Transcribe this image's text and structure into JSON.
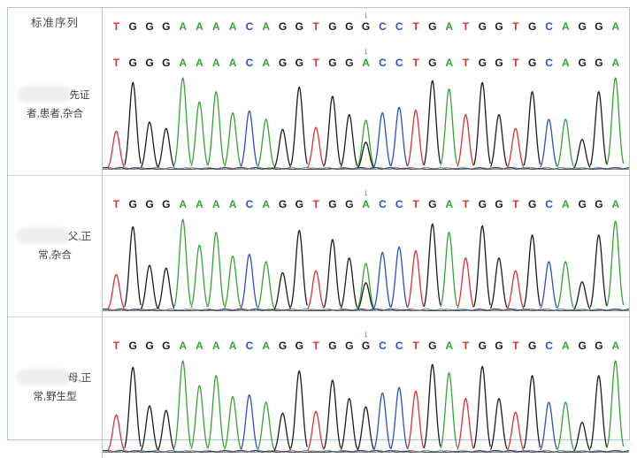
{
  "table": {
    "header": {
      "label": "标准序列",
      "sequence": "TGGGAAAACAGGTGGGCCTGATGGTGCAGGA",
      "arrow_index": 15
    },
    "rows": [
      {
        "label": "先证者,患者,杂合",
        "name_redacted": true,
        "sequence": "TGGGAAAACAGGTGGACCTGATGGTGCAGGA",
        "arrow_index": 15,
        "peaks": [
          {
            "b": "T",
            "h": 0.42
          },
          {
            "b": "G",
            "h": 0.95
          },
          {
            "b": "G",
            "h": 0.52
          },
          {
            "b": "G",
            "h": 0.45
          },
          {
            "b": "A",
            "h": 1.0
          },
          {
            "b": "A",
            "h": 0.74
          },
          {
            "b": "A",
            "h": 0.85
          },
          {
            "b": "A",
            "h": 0.62
          },
          {
            "b": "C",
            "h": 0.64
          },
          {
            "b": "A",
            "h": 0.55
          },
          {
            "b": "G",
            "h": 0.44
          },
          {
            "b": "G",
            "h": 0.9
          },
          {
            "b": "T",
            "h": 0.46
          },
          {
            "b": "G",
            "h": 0.8
          },
          {
            "b": "G",
            "h": 0.6
          },
          {
            "b": "A",
            "h": 0.54,
            "b2": "G",
            "h2": 0.3
          },
          {
            "b": "C",
            "h": 0.62
          },
          {
            "b": "C",
            "h": 0.68
          },
          {
            "b": "T",
            "h": 0.65
          },
          {
            "b": "G",
            "h": 0.97
          },
          {
            "b": "A",
            "h": 0.88
          },
          {
            "b": "T",
            "h": 0.6
          },
          {
            "b": "G",
            "h": 0.95
          },
          {
            "b": "G",
            "h": 0.6
          },
          {
            "b": "T",
            "h": 0.45
          },
          {
            "b": "G",
            "h": 0.85
          },
          {
            "b": "C",
            "h": 0.55
          },
          {
            "b": "A",
            "h": 0.55
          },
          {
            "b": "G",
            "h": 0.33
          },
          {
            "b": "G",
            "h": 0.85
          },
          {
            "b": "A",
            "h": 1.0
          }
        ]
      },
      {
        "label": "父,正常,杂合",
        "name_redacted": true,
        "sequence": "TGGGAAAACAGGTGGACCTGATGGTGCAGGA",
        "arrow_index": 15,
        "peaks": [
          {
            "b": "T",
            "h": 0.4
          },
          {
            "b": "G",
            "h": 0.92
          },
          {
            "b": "G",
            "h": 0.5
          },
          {
            "b": "G",
            "h": 0.47
          },
          {
            "b": "A",
            "h": 1.0
          },
          {
            "b": "A",
            "h": 0.72
          },
          {
            "b": "A",
            "h": 0.86
          },
          {
            "b": "A",
            "h": 0.6
          },
          {
            "b": "C",
            "h": 0.62
          },
          {
            "b": "A",
            "h": 0.54
          },
          {
            "b": "G",
            "h": 0.42
          },
          {
            "b": "G",
            "h": 0.88
          },
          {
            "b": "T",
            "h": 0.44
          },
          {
            "b": "G",
            "h": 0.78
          },
          {
            "b": "G",
            "h": 0.58
          },
          {
            "b": "A",
            "h": 0.52,
            "b2": "G",
            "h2": 0.31
          },
          {
            "b": "C",
            "h": 0.64
          },
          {
            "b": "C",
            "h": 0.7
          },
          {
            "b": "T",
            "h": 0.66
          },
          {
            "b": "G",
            "h": 0.95
          },
          {
            "b": "A",
            "h": 0.86
          },
          {
            "b": "T",
            "h": 0.58
          },
          {
            "b": "G",
            "h": 0.93
          },
          {
            "b": "G",
            "h": 0.58
          },
          {
            "b": "T",
            "h": 0.44
          },
          {
            "b": "G",
            "h": 0.83
          },
          {
            "b": "C",
            "h": 0.54
          },
          {
            "b": "A",
            "h": 0.54
          },
          {
            "b": "G",
            "h": 0.32
          },
          {
            "b": "G",
            "h": 0.83
          },
          {
            "b": "A",
            "h": 0.98
          }
        ]
      },
      {
        "label": "母,正常,野生型",
        "name_redacted": true,
        "sequence": "TGGGAAAACAGGTGGGCCTGATGGTGCAGGA",
        "arrow_index": 15,
        "peaks": [
          {
            "b": "T",
            "h": 0.41
          },
          {
            "b": "G",
            "h": 0.93
          },
          {
            "b": "G",
            "h": 0.51
          },
          {
            "b": "G",
            "h": 0.46
          },
          {
            "b": "A",
            "h": 1.0
          },
          {
            "b": "A",
            "h": 0.73
          },
          {
            "b": "A",
            "h": 0.84
          },
          {
            "b": "A",
            "h": 0.61
          },
          {
            "b": "C",
            "h": 0.63
          },
          {
            "b": "A",
            "h": 0.55
          },
          {
            "b": "G",
            "h": 0.43
          },
          {
            "b": "G",
            "h": 0.89
          },
          {
            "b": "T",
            "h": 0.45
          },
          {
            "b": "G",
            "h": 0.79
          },
          {
            "b": "G",
            "h": 0.59
          },
          {
            "b": "G",
            "h": 0.5
          },
          {
            "b": "C",
            "h": 0.65
          },
          {
            "b": "C",
            "h": 0.71
          },
          {
            "b": "T",
            "h": 0.67
          },
          {
            "b": "G",
            "h": 0.96
          },
          {
            "b": "A",
            "h": 0.87
          },
          {
            "b": "T",
            "h": 0.59
          },
          {
            "b": "G",
            "h": 0.94
          },
          {
            "b": "G",
            "h": 0.59
          },
          {
            "b": "T",
            "h": 0.44
          },
          {
            "b": "G",
            "h": 0.84
          },
          {
            "b": "C",
            "h": 0.55
          },
          {
            "b": "A",
            "h": 0.55
          },
          {
            "b": "G",
            "h": 0.33
          },
          {
            "b": "G",
            "h": 0.84
          },
          {
            "b": "A",
            "h": 1.0
          }
        ]
      }
    ]
  },
  "base_colors": {
    "A": "#35a435",
    "C": "#2b4fc4",
    "G": "#1c1c1c",
    "T": "#e02f2f"
  },
  "arrow": {
    "glyph": "↓",
    "color": "#e02f2f"
  }
}
